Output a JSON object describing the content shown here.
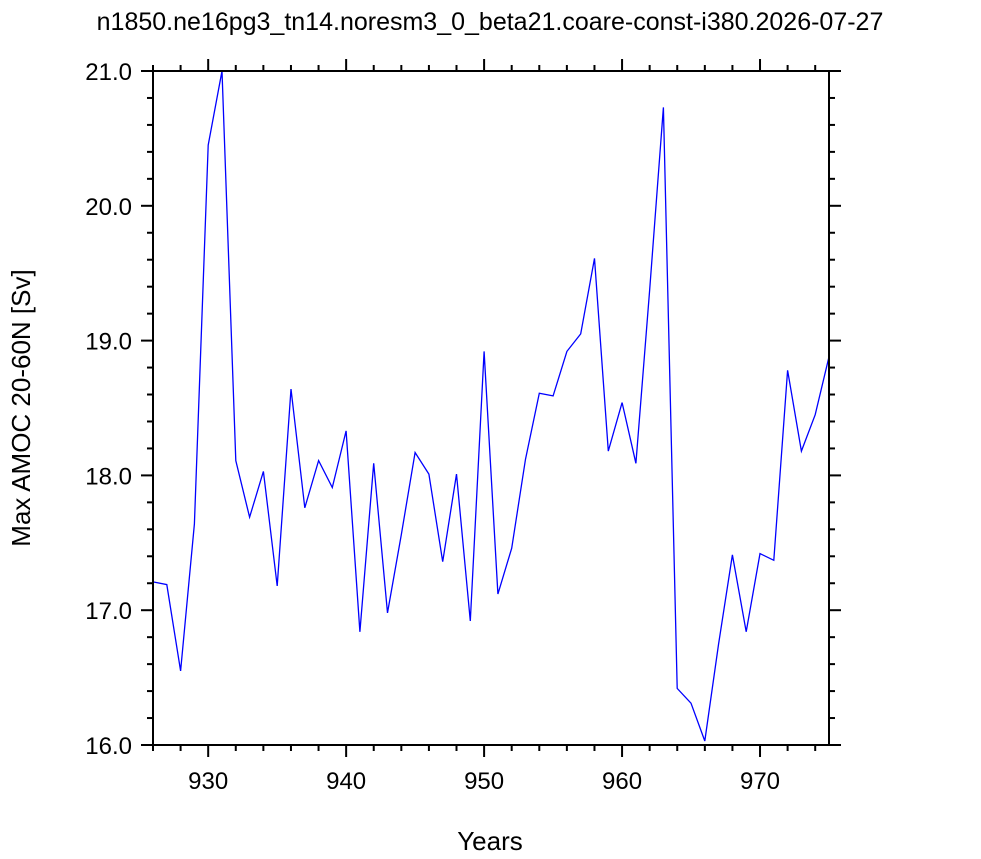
{
  "chart_data": {
    "type": "line",
    "title": "n1850.ne16pg3_tn14.noresm3_0_beta21.coare-const-i380.2026-07-27",
    "xlabel": "Years",
    "ylabel": "Max AMOC 20-60N [Sv]",
    "xlim": [
      926,
      975
    ],
    "ylim": [
      16.0,
      21.0
    ],
    "x_ticks": [
      930,
      940,
      950,
      960,
      970
    ],
    "y_ticks": [
      16.0,
      17.0,
      18.0,
      19.0,
      20.0,
      21.0
    ],
    "x_tick_labels": [
      "930",
      "940",
      "950",
      "960",
      "970"
    ],
    "y_tick_labels": [
      "16.0",
      "17.0",
      "18.0",
      "19.0",
      "20.0",
      "21.0"
    ],
    "grid": false,
    "legend": "none",
    "series": [
      {
        "color": "#0000ff",
        "x": [
          926,
          927,
          928,
          929,
          930,
          931,
          932,
          933,
          934,
          935,
          936,
          937,
          938,
          939,
          940,
          941,
          942,
          943,
          944,
          945,
          946,
          947,
          948,
          949,
          950,
          951,
          952,
          953,
          954,
          955,
          956,
          957,
          958,
          959,
          960,
          961,
          962,
          963,
          964,
          965,
          966,
          967,
          968,
          969,
          970,
          971,
          972,
          973,
          974,
          975
        ],
        "y": [
          17.21,
          17.19,
          16.55,
          17.64,
          20.45,
          21.0,
          18.11,
          17.69,
          18.03,
          17.18,
          18.64,
          17.76,
          18.11,
          17.91,
          18.33,
          16.84,
          18.09,
          16.98,
          17.56,
          18.17,
          18.01,
          17.36,
          18.01,
          16.92,
          18.92,
          17.12,
          17.46,
          18.12,
          18.61,
          18.59,
          18.92,
          19.05,
          19.61,
          18.18,
          18.54,
          18.09,
          19.38,
          20.73,
          16.42,
          16.31,
          16.03,
          16.75,
          17.41,
          16.84,
          17.42,
          17.37,
          18.78,
          18.18,
          18.45,
          18.88
        ]
      }
    ]
  }
}
